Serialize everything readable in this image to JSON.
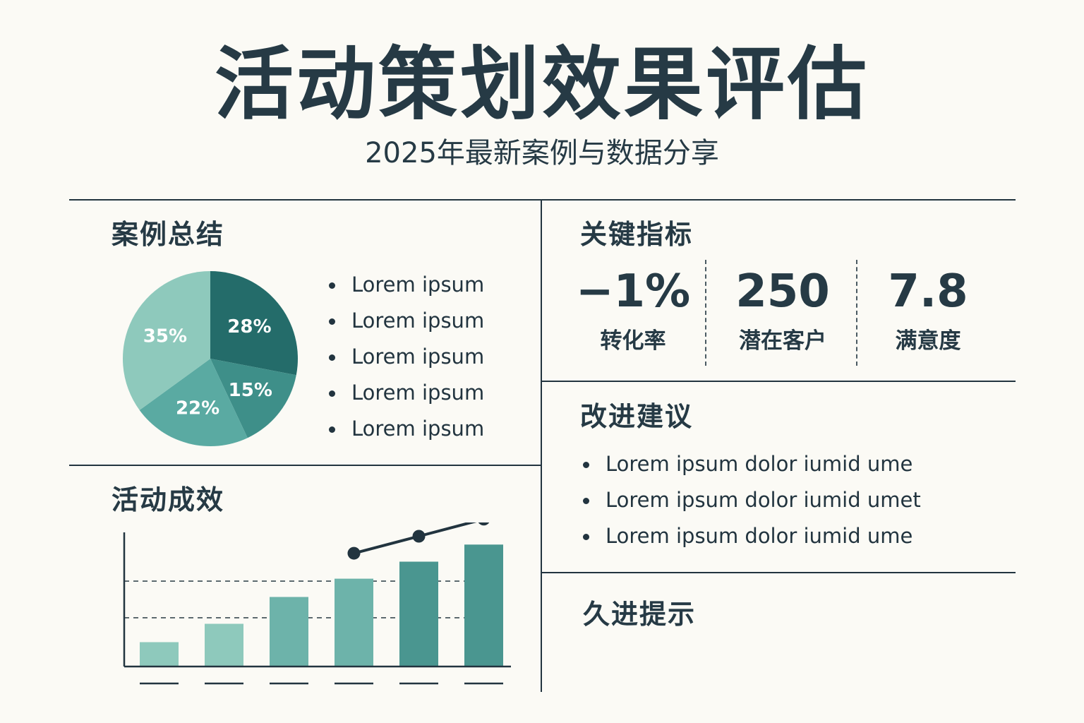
{
  "header": {
    "title": "活动策划效果评估",
    "subtitle": "2025年最新案例与数据分享"
  },
  "case_summary": {
    "title": "案例总结",
    "items": [
      "Lorem ipsum",
      "Lorem ipsum",
      "Lorem ipsum",
      "Lorem ipsum",
      "Lorem ipsum"
    ]
  },
  "key_metrics": {
    "title": "关键指标",
    "items": [
      {
        "value": "−1%",
        "label": "转化率"
      },
      {
        "value": "250",
        "label": "潜在客户"
      },
      {
        "value": "7.8",
        "label": "满意度"
      }
    ]
  },
  "improvements": {
    "title": "改进建议",
    "items": [
      "Lorem ipsum dolor iumid ume",
      "Lorem ipsum dolor iumid umet",
      "Lorem ipsum dolor iumid ume"
    ]
  },
  "tips": {
    "title": "久进提示"
  },
  "effect": {
    "title": "活动成效"
  },
  "colors": {
    "dark": "#22343f",
    "teal_dark": "#246c6a",
    "teal_mid": "#3e8f89",
    "teal": "#5aaaa2",
    "teal_light": "#8ec9bc"
  },
  "chart_data": [
    {
      "type": "pie",
      "labels": [
        "28%",
        "15%",
        "22%",
        "35%"
      ],
      "values": [
        28,
        15,
        22,
        35
      ],
      "colors": [
        "#246c6a",
        "#3e8f89",
        "#5aaaa2",
        "#8ec9bc"
      ]
    },
    {
      "type": "bar",
      "values": [
        20,
        35,
        57,
        72,
        86,
        100
      ],
      "line_values": [
        72,
        86,
        100
      ],
      "line_start_index": 3,
      "ylim": [
        0,
        110
      ],
      "gridlines": [
        40,
        70
      ],
      "colors": [
        "#8ec9bc",
        "#8ec9bc",
        "#6db3aa",
        "#6db3aa",
        "#4a9690",
        "#4a9690"
      ]
    }
  ]
}
